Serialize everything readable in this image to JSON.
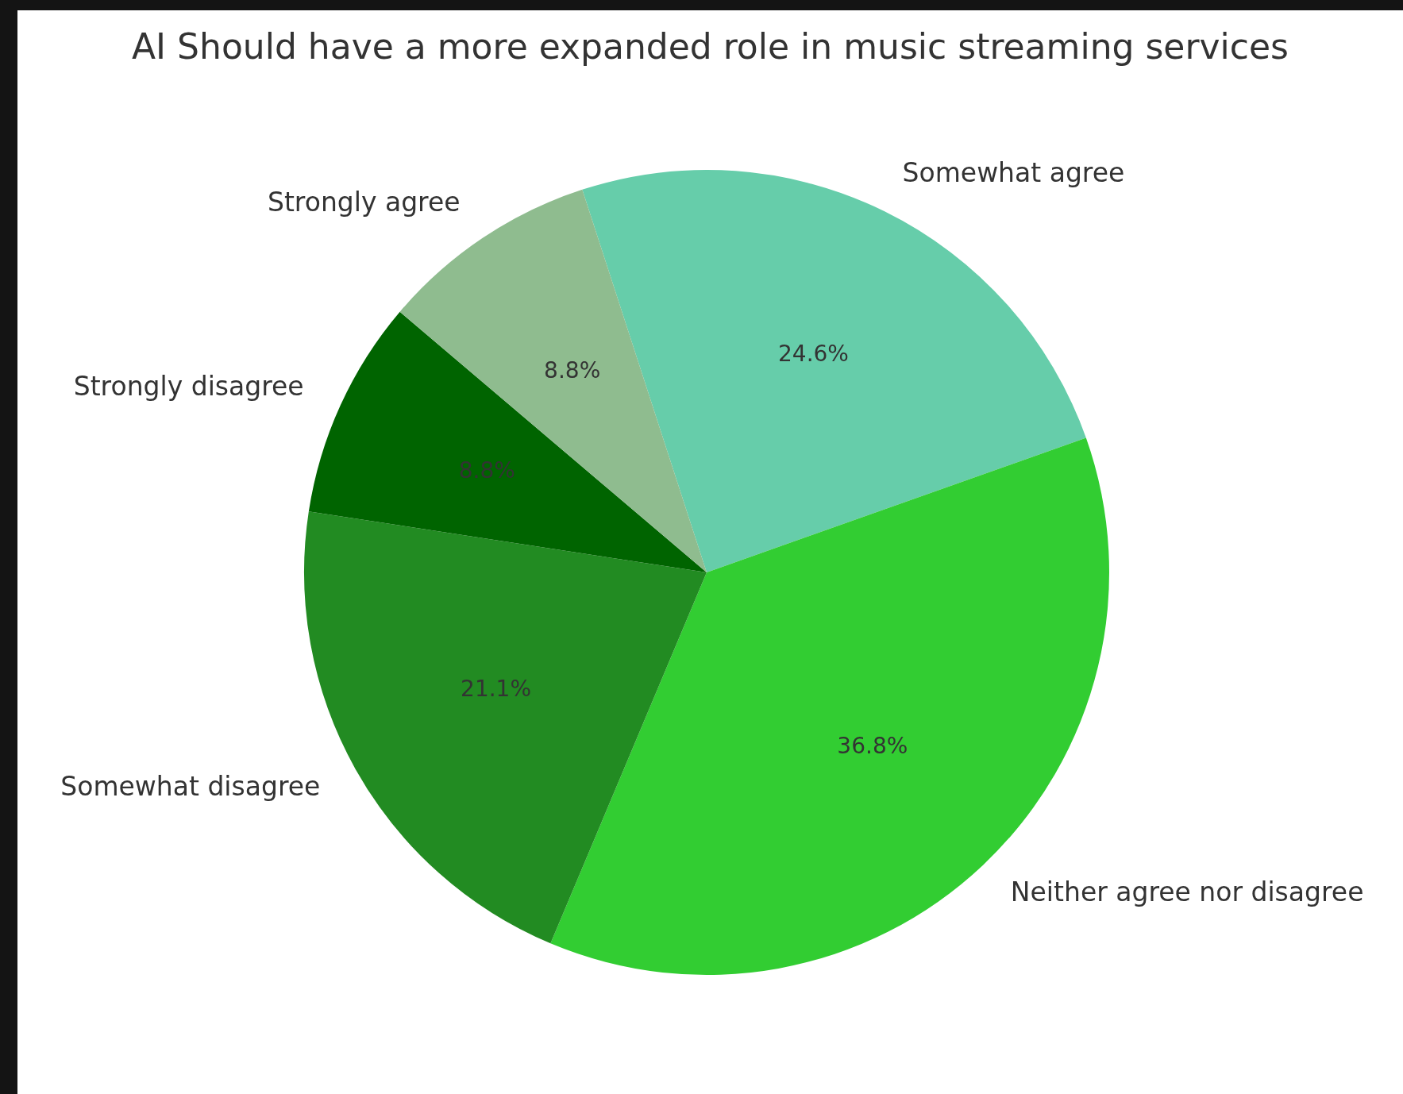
{
  "chart_data": {
    "type": "pie",
    "title": "AI Should have a more expanded role in music streaming services",
    "categories": [
      "Somewhat agree",
      "Neither agree nor disagree",
      "Somewhat disagree",
      "Strongly disagree",
      "Strongly agree"
    ],
    "values": [
      24.6,
      36.8,
      21.1,
      8.8,
      8.8
    ],
    "colors": [
      "#66cdaa",
      "#32cd32",
      "#228b22",
      "#006400",
      "#8fbc8f"
    ],
    "value_labels": [
      "24.6%",
      "36.8%",
      "21.1%",
      "8.8%",
      "8.8%"
    ],
    "legend": false
  }
}
